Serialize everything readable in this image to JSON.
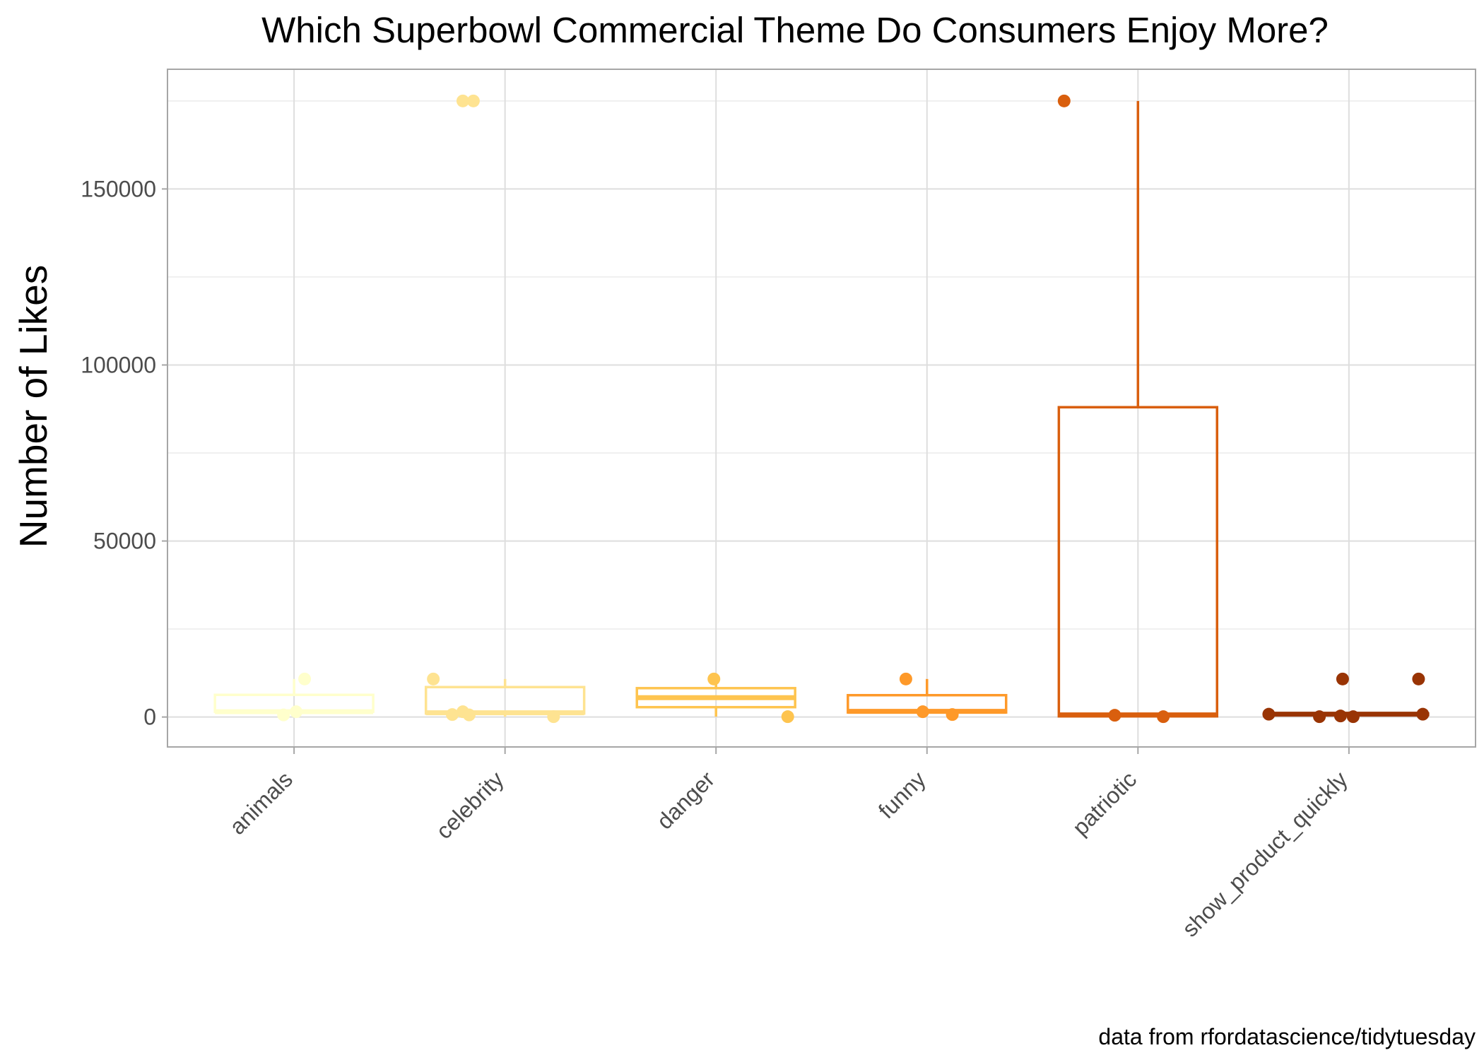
{
  "chart_data": {
    "type": "box",
    "title": "Which Superbowl Commercial Theme Do Consumers Enjoy More?",
    "xlabel": "",
    "ylabel": "Number of Likes",
    "caption": "data from rfordatascience/tidytuesday",
    "ylim": [
      -8500,
      184000
    ],
    "yticks": [
      0,
      50000,
      100000,
      150000
    ],
    "grid": true,
    "legend": "none",
    "categories": [
      "animals",
      "celebrity",
      "danger",
      "funny",
      "patriotic",
      "show_product_quickly"
    ],
    "colors": [
      "#FFFFCC",
      "#FEE391",
      "#FEC44F",
      "#FE9929",
      "#D95F0E",
      "#993404"
    ],
    "boxes": [
      {
        "category": "animals",
        "q1": 1500,
        "median": 1500,
        "q3": 6300,
        "whisker_low": 600,
        "whisker_high": 10800
      },
      {
        "category": "celebrity",
        "q1": 1000,
        "median": 1200,
        "q3": 8500,
        "whisker_low": 100,
        "whisker_high": 10800
      },
      {
        "category": "danger",
        "q1": 2800,
        "median": 5500,
        "q3": 8200,
        "whisker_low": 100,
        "whisker_high": 10800
      },
      {
        "category": "funny",
        "q1": 1300,
        "median": 1600,
        "q3": 6200,
        "whisker_low": 600,
        "whisker_high": 10800
      },
      {
        "category": "patriotic",
        "q1": 200,
        "median": 600,
        "q3": 88000,
        "whisker_low": 100,
        "whisker_high": 175000
      },
      {
        "category": "show_product_quickly",
        "q1": 600,
        "median": 800,
        "q3": 1000,
        "whisker_low": 100,
        "whisker_high": 1000
      }
    ],
    "points": [
      {
        "category": "animals",
        "x": 0.95,
        "y": 600
      },
      {
        "category": "animals",
        "x": 1.01,
        "y": 1500
      },
      {
        "category": "animals",
        "x": 1.05,
        "y": 10800
      },
      {
        "category": "celebrity",
        "x": 1.8,
        "y": 175000
      },
      {
        "category": "celebrity",
        "x": 1.85,
        "y": 175000
      },
      {
        "category": "celebrity",
        "x": 1.66,
        "y": 10800
      },
      {
        "category": "celebrity",
        "x": 1.8,
        "y": 1500
      },
      {
        "category": "celebrity",
        "x": 1.75,
        "y": 700
      },
      {
        "category": "celebrity",
        "x": 1.83,
        "y": 600
      },
      {
        "category": "celebrity",
        "x": 2.23,
        "y": 100
      },
      {
        "category": "danger",
        "x": 2.99,
        "y": 10800
      },
      {
        "category": "danger",
        "x": 3.34,
        "y": 100
      },
      {
        "category": "funny",
        "x": 3.9,
        "y": 10800
      },
      {
        "category": "funny",
        "x": 3.98,
        "y": 1500
      },
      {
        "category": "funny",
        "x": 4.12,
        "y": 700
      },
      {
        "category": "patriotic",
        "x": 4.65,
        "y": 175000
      },
      {
        "category": "patriotic",
        "x": 4.89,
        "y": 500
      },
      {
        "category": "patriotic",
        "x": 5.12,
        "y": 100
      },
      {
        "category": "show_product_quickly",
        "x": 5.62,
        "y": 800
      },
      {
        "category": "show_product_quickly",
        "x": 5.86,
        "y": 100
      },
      {
        "category": "show_product_quickly",
        "x": 5.97,
        "y": 10800
      },
      {
        "category": "show_product_quickly",
        "x": 5.96,
        "y": 300
      },
      {
        "category": "show_product_quickly",
        "x": 6.02,
        "y": 100
      },
      {
        "category": "show_product_quickly",
        "x": 6.33,
        "y": 10800
      },
      {
        "category": "show_product_quickly",
        "x": 6.35,
        "y": 800
      }
    ]
  }
}
